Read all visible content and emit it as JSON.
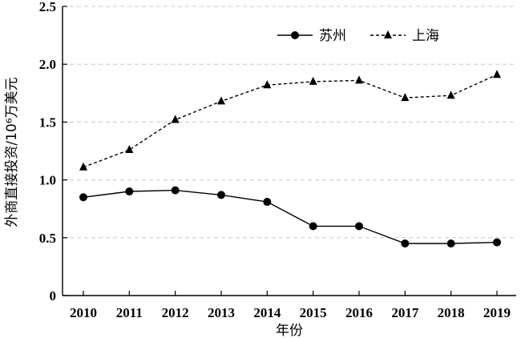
{
  "chart_data": {
    "type": "line",
    "xlabel": "年份",
    "ylabel": "外商直接投资/10⁶万美元",
    "categories": [
      "2010",
      "2011",
      "2012",
      "2013",
      "2014",
      "2015",
      "2016",
      "2017",
      "2018",
      "2019"
    ],
    "ylim": [
      0,
      2.5
    ],
    "yticks": [
      "0",
      "0.5",
      "1.0",
      "1.5",
      "2.0",
      "2.5"
    ],
    "grid": true,
    "legend_position": "top-right",
    "series": [
      {
        "name": "苏州",
        "marker": "circle",
        "line": "solid",
        "color": "#000000",
        "values": [
          0.85,
          0.9,
          0.91,
          0.87,
          0.81,
          0.6,
          0.6,
          0.45,
          0.45,
          0.46
        ]
      },
      {
        "name": "上海",
        "marker": "triangle",
        "line": "dashed",
        "color": "#000000",
        "values": [
          1.11,
          1.26,
          1.52,
          1.68,
          1.82,
          1.85,
          1.86,
          1.71,
          1.73,
          1.91
        ]
      }
    ]
  }
}
